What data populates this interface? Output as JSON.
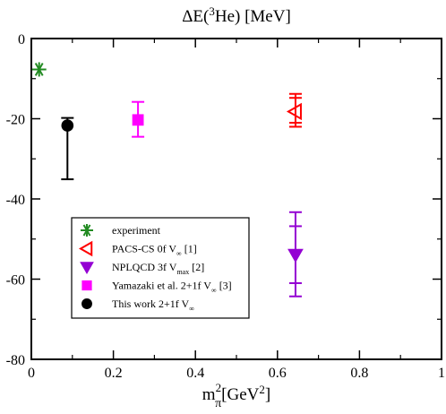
{
  "chart_data": {
    "type": "scatter",
    "title": {
      "main": "ΔE(",
      "sup": "3",
      "rest": "He) [MeV]"
    },
    "xlabel": {
      "pre": "m",
      "sup": "2",
      "sub": "π",
      "post": "[GeV",
      "post_sup": "2",
      "post_end": "]"
    },
    "ylabel": "",
    "xlim": [
      0,
      1
    ],
    "ylim": [
      -80,
      0
    ],
    "x_ticks": [
      "0",
      "0.2",
      "0.4",
      "0.6",
      "0.8",
      "1"
    ],
    "y_ticks": [
      "0",
      "-20",
      "-40",
      "-60",
      "-80"
    ],
    "x_tick_values": [
      0,
      0.2,
      0.4,
      0.6,
      0.8,
      1
    ],
    "y_tick_values": [
      0,
      -20,
      -40,
      -60,
      -80
    ],
    "grid": false,
    "legend_position": "bottom-left",
    "series": [
      {
        "name": "experiment",
        "legend": {
          "text": "experiment"
        },
        "marker": "asterisk",
        "color": "#228b22",
        "points": [
          {
            "x": 0.019,
            "y": -7.7
          }
        ]
      },
      {
        "name": "PACS-CS 0f V∞ [1]",
        "legend": {
          "pre": "PACS-CS 0f V",
          "sub": "∞",
          "post": " [1]"
        },
        "marker": "triangle-left-open",
        "color": "#ff0000",
        "points": [
          {
            "x": 0.644,
            "y": -18.2,
            "err_lo": [
              -22.0,
              -21.0
            ],
            "err_hi": [
              -13.8,
              -14.8
            ]
          }
        ]
      },
      {
        "name": "NPLQCD 3f Vmax [2]",
        "legend": {
          "pre": "NPLQCD 3f V",
          "sub": "max",
          "post": " [2]"
        },
        "marker": "triangle-down-filled",
        "color": "#9400d3",
        "points": [
          {
            "x": 0.644,
            "y": -53.9,
            "err_lo": [
              -64.3,
              -61.0
            ],
            "err_hi": [
              -43.3,
              -46.8
            ]
          }
        ]
      },
      {
        "name": "Yamazaki et al. 2+1f V∞ [3]",
        "legend": {
          "pre": "Yamazaki et al. 2+1f V",
          "sub": "∞",
          "post": " [3]"
        },
        "marker": "square-filled",
        "color": "#ff00ff",
        "points": [
          {
            "x": 0.26,
            "y": -20.3,
            "err_lo": [
              -24.5
            ],
            "err_hi": [
              -15.8
            ]
          }
        ]
      },
      {
        "name": "This work 2+1f V∞",
        "legend": {
          "pre": "This work 2+1f V",
          "sub": "∞",
          "post": ""
        },
        "marker": "circle-filled",
        "color": "#000000",
        "points": [
          {
            "x": 0.088,
            "y": -21.7,
            "err_lo": [
              -35.1
            ],
            "err_hi": [
              -19.8
            ]
          }
        ]
      }
    ]
  }
}
